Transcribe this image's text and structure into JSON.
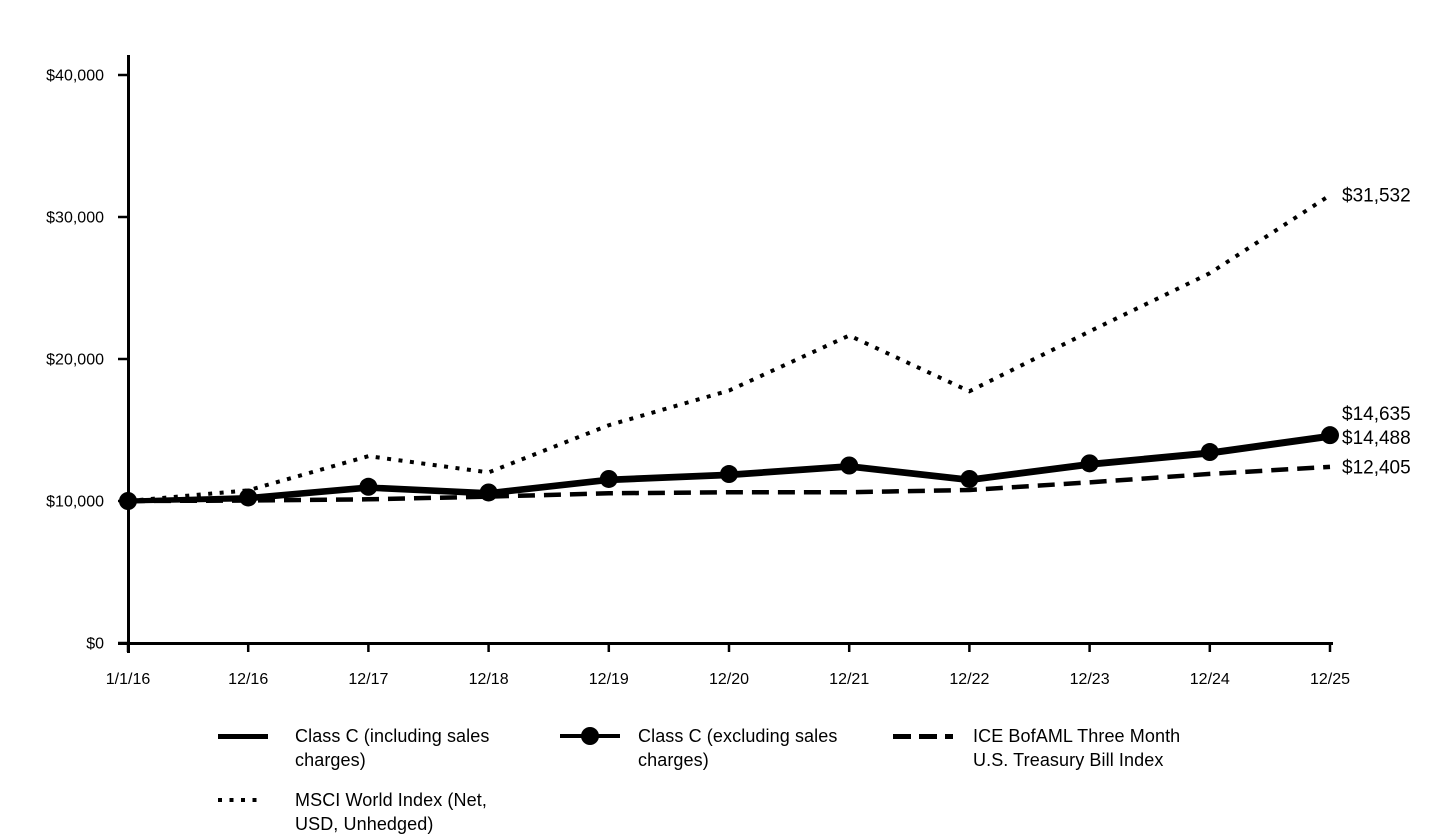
{
  "chart_data": {
    "type": "line",
    "title": "",
    "xlabel": "",
    "ylabel": "",
    "ylim": [
      0,
      40000
    ],
    "grid": false,
    "legend_position": "bottom",
    "x_labels": [
      "1/1/16",
      "12/16",
      "12/17",
      "12/18",
      "12/19",
      "12/20",
      "12/21",
      "12/22",
      "12/23",
      "12/24",
      "12/25"
    ],
    "y_ticks": [
      {
        "label": "$0",
        "value": 0
      },
      {
        "label": "$10,000",
        "value": 10000
      },
      {
        "label": "$20,000",
        "value": 20000
      },
      {
        "label": "$30,000",
        "value": 30000
      },
      {
        "label": "$40,000",
        "value": 40000
      }
    ],
    "series": [
      {
        "name": "Class C (including sales charges)",
        "style": "solid",
        "marker": false,
        "end_label": "$14,488",
        "final_value": 14488,
        "values": [
          10000,
          10150,
          10890,
          10490,
          11430,
          11780,
          12375,
          11430,
          12520,
          13310,
          14488
        ]
      },
      {
        "name": "Class C (excluding sales charges)",
        "style": "solid",
        "marker": true,
        "end_label": "$14,635",
        "final_value": 14635,
        "values": [
          10000,
          10250,
          11000,
          10600,
          11550,
          11900,
          12500,
          11550,
          12650,
          13450,
          14635
        ]
      },
      {
        "name": "ICE BofAML Three Month U.S. Treasury Bill Index",
        "style": "dashed",
        "marker": false,
        "end_label": "$12,405",
        "final_value": 12405,
        "values": [
          10000,
          10033,
          10119,
          10308,
          10543,
          10614,
          10619,
          10774,
          11314,
          11908,
          12405
        ]
      },
      {
        "name": "MSCI World Index (Net, USD, Unhedged)",
        "style": "dotted",
        "marker": false,
        "end_label": "$31,532",
        "final_value": 31532,
        "values": [
          10000,
          10751,
          13159,
          12013,
          15337,
          17776,
          21655,
          17726,
          21943,
          26040,
          31532
        ]
      }
    ],
    "colors": {
      "line": "#000000",
      "background": "#ffffff",
      "text": "#000000"
    }
  }
}
